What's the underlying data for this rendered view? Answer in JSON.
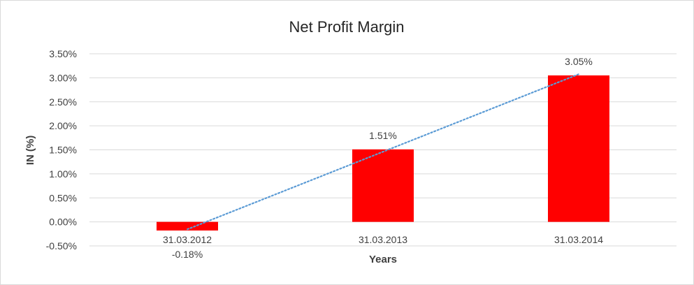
{
  "chart_data": {
    "type": "bar",
    "title": "Net Profit Margin",
    "xlabel": "Years",
    "ylabel": "IN (%)",
    "categories": [
      "31.03.2012",
      "31.03.2013",
      "31.03.2014"
    ],
    "values": [
      -0.18,
      1.51,
      3.05
    ],
    "data_labels": [
      "-0.18%",
      "1.51%",
      "3.05%"
    ],
    "ylim": [
      -0.5,
      3.5
    ],
    "yticks": [
      -0.5,
      0,
      0.5,
      1,
      1.5,
      2,
      2.5,
      3,
      3.5
    ],
    "ytick_labels": [
      "-0.50%",
      "0.00%",
      "0.50%",
      "1.00%",
      "1.50%",
      "2.00%",
      "2.50%",
      "3.00%",
      "3.50%"
    ],
    "grid": true,
    "trendline": {
      "type": "linear",
      "style": "dotted"
    },
    "colors": {
      "bar": "#ff0000",
      "trendline": "#5b9bd5",
      "grid": "#d9d9d9"
    }
  }
}
